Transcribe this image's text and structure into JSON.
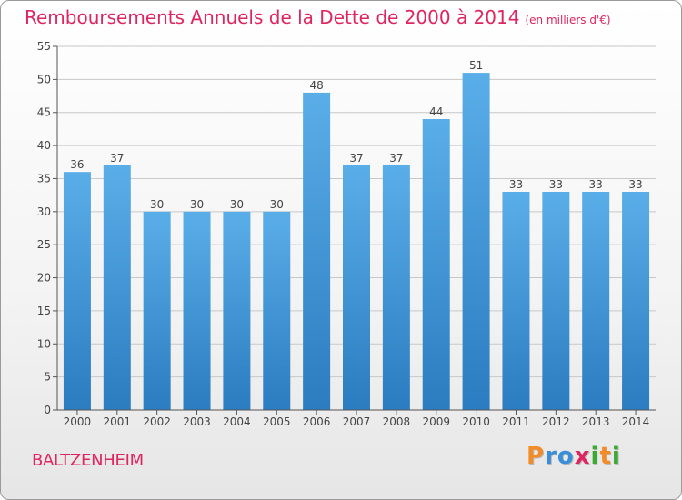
{
  "header": {
    "title": "Remboursements Annuels de la Dette de 2000 à 2014",
    "unit": "(en milliers d'€)"
  },
  "footer": {
    "municipality": "BALTZENHEIM",
    "brand_letters": [
      "P",
      "r",
      "o",
      "x",
      "i",
      "t",
      "i"
    ],
    "brand_colors": [
      "#f28c28",
      "#3a8fd9",
      "#3a8fd9",
      "#e0245f",
      "#3aaa35",
      "#f28c28",
      "#3aaa35"
    ]
  },
  "colors": {
    "bar_top": "#5aaee8",
    "bar_bottom": "#2b7cc0",
    "grid": "#c8c8c8",
    "axis": "#555555",
    "text": "#444444"
  },
  "chart_data": {
    "type": "bar",
    "title": "Remboursements Annuels de la Dette de 2000 à 2014",
    "xlabel": "",
    "ylabel": "",
    "categories": [
      "2000",
      "2001",
      "2002",
      "2003",
      "2004",
      "2005",
      "2006",
      "2007",
      "2008",
      "2009",
      "2010",
      "2011",
      "2012",
      "2013",
      "2014"
    ],
    "values": [
      36,
      37,
      30,
      30,
      30,
      30,
      48,
      37,
      37,
      44,
      51,
      33,
      33,
      33,
      33
    ],
    "ylim": [
      0,
      55
    ],
    "yticks": [
      0,
      5,
      10,
      15,
      20,
      25,
      30,
      35,
      40,
      45,
      50,
      55
    ],
    "grid": true,
    "legend": "none"
  }
}
